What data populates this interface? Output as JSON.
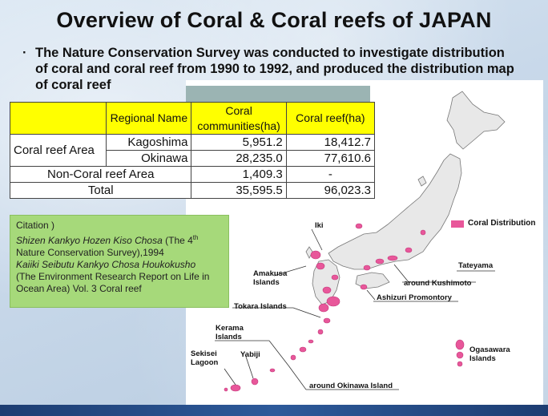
{
  "title": "Overview of Coral & Coral reefs of JAPAN",
  "bullet": {
    "dot": "·",
    "text": "The Nature Conservation Survey was conducted to investigate distribution of coral and coral reef from 1990 to 1992, and produced the distribution map of coral reef"
  },
  "table": {
    "headers": [
      "Regional Name",
      "Coral communities(ha)",
      "Coral reef(ha)"
    ],
    "coral_reef_area_label": "Coral reef Area",
    "rows": [
      {
        "name": "Kagoshima",
        "communities": "5,951.2",
        "reef": "18,412.7"
      },
      {
        "name": "Okinawa",
        "communities": "28,235.0",
        "reef": "77,610.6"
      }
    ],
    "non_coral": {
      "label": "Non-Coral reef Area",
      "communities": "1,409.3",
      "reef": "-"
    },
    "total": {
      "label": "Total",
      "communities": "35,595.5",
      "reef": "96,023.3"
    }
  },
  "citation": {
    "heading": "Citation )",
    "line1_italic": "Shizen Kankyo Hozen Kiso Chosa",
    "line1_rest": " (The 4",
    "line1_sup": "th",
    "line1_end": " Nature Conservation Survey),1994",
    "line2_italic": "Kaiiki Seibutu Kankyo Chosa Houkokusho",
    "line3": "(The Environment Research Report on Life in Ocean Area) Vol. 3 Coral reef"
  },
  "legend": {
    "label": "Coral  Distribution",
    "color": "#e8579a"
  },
  "map_labels": {
    "iki": "Iki",
    "tateyama": "Tateyama",
    "kushimoto": "around Kushimoto",
    "amakusa": "Amakusa Islands",
    "ashizuri": "Ashizuri Promontory",
    "tokara": "Tokara Islands",
    "kerama": "Kerama Islands",
    "sekisei": "Sekisei Lagoon",
    "yabiji": "Yabiji",
    "okinawa": "around Okinawa Island",
    "ogasawara": "Ogasawara Islands"
  }
}
